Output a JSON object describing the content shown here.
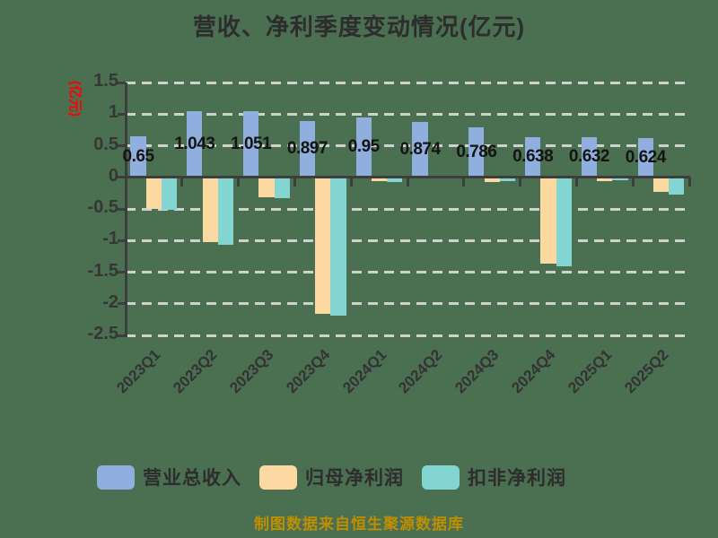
{
  "title": "营收、净利季度变动情况(亿元)",
  "y_axis": {
    "label": "(亿元)",
    "ticks": [
      "1.5",
      "1",
      "0.5",
      "0",
      "-0.5",
      "-1",
      "-1.5",
      "-2",
      "-2.5"
    ]
  },
  "footer": "制图数据来自恒生聚源数据库",
  "colors": {
    "background": "#4A6F51",
    "revenue_blue": "#90AFDE",
    "net_profit_orange": "#FBD9A0",
    "deducted_profit_teal": "#83D5D1",
    "gridline": "#CDD2CC",
    "axis": "#3d3d3d",
    "y_label_red": "#FF0000",
    "footer_gold": "#BF8F00"
  },
  "chart_data": {
    "type": "bar",
    "title": "营收、净利季度变动情况(亿元)",
    "ylabel": "(亿元)",
    "ylim": [
      -2.5,
      1.5
    ],
    "ytick_step": 0.5,
    "grid": "horizontal-dashed",
    "legend_position": "bottom",
    "categories": [
      "2023Q1",
      "2023Q2",
      "2023Q3",
      "2023Q4",
      "2024Q1",
      "2024Q2",
      "2024Q3",
      "2024Q4",
      "2025Q1",
      "2025Q2"
    ],
    "series": [
      {
        "name": "营业总收入",
        "color": "#90AFDE",
        "values": [
          0.65,
          1.043,
          1.051,
          0.897,
          0.95,
          0.874,
          0.786,
          0.638,
          0.632,
          0.624
        ],
        "value_labels": [
          "0.65",
          "1.043",
          "1.051",
          "0.897",
          "0.95",
          "0.874",
          "0.786",
          "0.638",
          "0.632",
          "0.624"
        ]
      },
      {
        "name": "归母净利润",
        "color": "#FBD9A0",
        "values": [
          -0.48,
          -1.01,
          -0.3,
          -2.14,
          -0.05,
          0.03,
          -0.06,
          -1.35,
          -0.04,
          -0.22
        ],
        "color_overrides": {
          "5": "#4a4a4a"
        }
      },
      {
        "name": "扣非净利润",
        "color": "#83D5D1",
        "values": [
          -0.5,
          -1.05,
          -0.31,
          -2.18,
          -0.06,
          0.02,
          -0.05,
          -1.4,
          -0.03,
          -0.26
        ]
      }
    ]
  }
}
